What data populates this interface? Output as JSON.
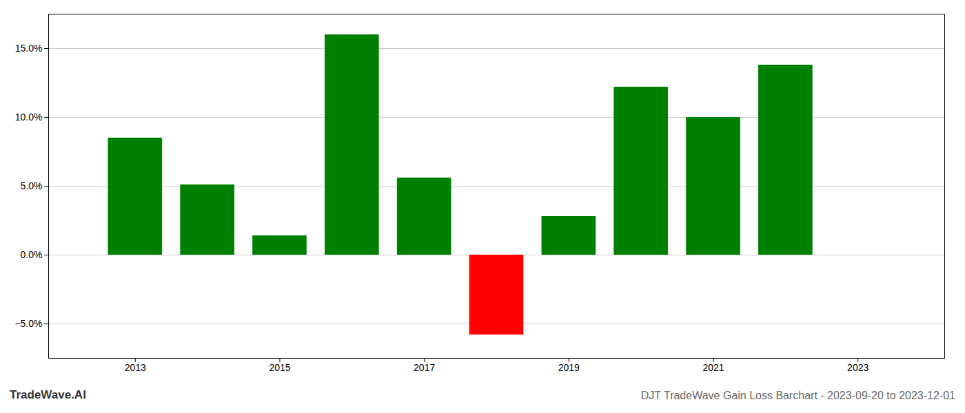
{
  "chart_data": {
    "type": "bar",
    "title": "DJT TradeWave Gain Loss Barchart - 2023-09-20 to 2023-12-01",
    "annotations": [
      "TradeWave.AI"
    ],
    "x": [
      2013,
      2014,
      2015,
      2016,
      2017,
      2018,
      2019,
      2020,
      2021,
      2022,
      2023
    ],
    "values": [
      0.085,
      0.051,
      0.014,
      0.16,
      0.056,
      -0.058,
      0.028,
      0.122,
      0.1,
      0.138,
      null
    ],
    "colors": [
      "#008000",
      "#008000",
      "#008000",
      "#008000",
      "#008000",
      "#ff0000",
      "#008000",
      "#008000",
      "#008000",
      "#008000",
      null
    ],
    "xlim": [
      2011.8,
      2024.2
    ],
    "xticks": [
      2013,
      2015,
      2017,
      2019,
      2021,
      2023
    ],
    "ylim": [
      -0.075,
      0.175
    ],
    "yticks": [
      {
        "value": -0.05,
        "label": "−5.0%"
      },
      {
        "value": 0.0,
        "label": "0.0%"
      },
      {
        "value": 0.05,
        "label": "5.0%"
      },
      {
        "value": 0.1,
        "label": "10.0%"
      },
      {
        "value": 0.15,
        "label": "15.0%"
      }
    ],
    "grid": true
  }
}
